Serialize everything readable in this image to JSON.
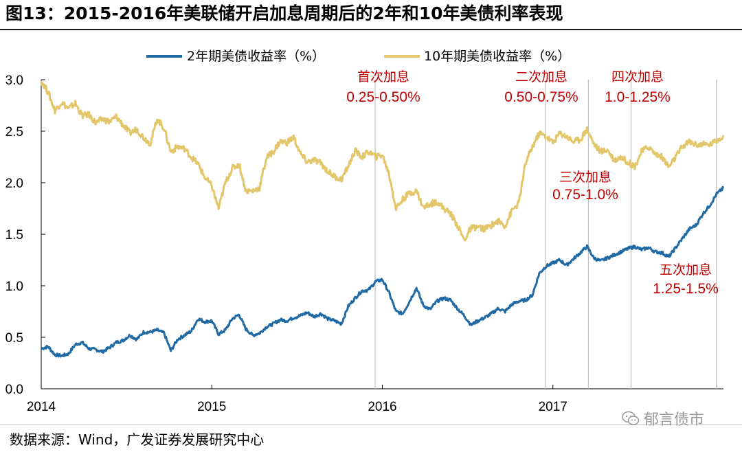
{
  "title": "图13：2015-2016年美联储开启加息周期后的2年和10年美债利率表现",
  "source": "数据来源：Wind，广发证券发展研究中心",
  "watermark": "郁言债市",
  "watermark_icon": "wechat-icon",
  "colors": {
    "series_2y": "#1f6aa5",
    "series_10y": "#e3c56a",
    "annotation": "#c00000",
    "marker_line": "#bfbfbf"
  },
  "chart_data": {
    "type": "line",
    "title": "2015-2016年美联储开启加息周期后的2年和10年美债利率表现",
    "xlabel": "",
    "ylabel": "",
    "xlim": [
      2014.0,
      2018.0
    ],
    "ylim": [
      0.0,
      3.0
    ],
    "x_ticks": [
      {
        "value": 2014.0,
        "label": "2014"
      },
      {
        "value": 2015.0,
        "label": "2015"
      },
      {
        "value": 2016.0,
        "label": "2016"
      },
      {
        "value": 2017.0,
        "label": "2017"
      }
    ],
    "y_ticks": [
      {
        "value": 0.0,
        "label": "0.0"
      },
      {
        "value": 0.5,
        "label": "0.5"
      },
      {
        "value": 1.0,
        "label": "1.0"
      },
      {
        "value": 1.5,
        "label": "1.5"
      },
      {
        "value": 2.0,
        "label": "2.0"
      },
      {
        "value": 2.5,
        "label": "2.5"
      },
      {
        "value": 3.0,
        "label": "3.0"
      }
    ],
    "legend": {
      "position": "top-center",
      "entries": [
        "2年期美债收益率（%）",
        "10年期美债收益率（%）"
      ]
    },
    "series": [
      {
        "name": "2年期美债收益率（%）",
        "x": [
          2014.0,
          2014.04,
          2014.08,
          2014.12,
          2014.16,
          2014.2,
          2014.24,
          2014.28,
          2014.32,
          2014.36,
          2014.4,
          2014.44,
          2014.48,
          2014.52,
          2014.56,
          2014.6,
          2014.64,
          2014.68,
          2014.72,
          2014.76,
          2014.8,
          2014.84,
          2014.88,
          2014.92,
          2014.96,
          2015.0,
          2015.04,
          2015.08,
          2015.12,
          2015.16,
          2015.2,
          2015.24,
          2015.28,
          2015.32,
          2015.36,
          2015.4,
          2015.44,
          2015.48,
          2015.52,
          2015.56,
          2015.6,
          2015.64,
          2015.68,
          2015.72,
          2015.76,
          2015.8,
          2015.84,
          2015.88,
          2015.92,
          2015.96,
          2016.0,
          2016.04,
          2016.08,
          2016.12,
          2016.16,
          2016.2,
          2016.24,
          2016.28,
          2016.32,
          2016.36,
          2016.4,
          2016.44,
          2016.48,
          2016.52,
          2016.56,
          2016.6,
          2016.64,
          2016.68,
          2016.72,
          2016.76,
          2016.8,
          2016.84,
          2016.88,
          2016.92,
          2016.96,
          2017.0,
          2017.04,
          2017.08,
          2017.12,
          2017.16,
          2017.2,
          2017.24,
          2017.28,
          2017.32,
          2017.36,
          2017.4,
          2017.44,
          2017.48,
          2017.52,
          2017.56,
          2017.6,
          2017.64,
          2017.68,
          2017.72,
          2017.76,
          2017.8,
          2017.84,
          2017.88,
          2017.92,
          2017.96,
          2018.0
        ],
        "values": [
          0.39,
          0.41,
          0.33,
          0.32,
          0.34,
          0.43,
          0.45,
          0.39,
          0.38,
          0.36,
          0.4,
          0.45,
          0.47,
          0.52,
          0.48,
          0.55,
          0.55,
          0.57,
          0.54,
          0.37,
          0.48,
          0.52,
          0.56,
          0.68,
          0.65,
          0.66,
          0.53,
          0.57,
          0.68,
          0.72,
          0.58,
          0.52,
          0.54,
          0.6,
          0.63,
          0.67,
          0.66,
          0.69,
          0.71,
          0.74,
          0.7,
          0.73,
          0.68,
          0.66,
          0.63,
          0.8,
          0.88,
          0.95,
          0.96,
          1.04,
          1.06,
          0.93,
          0.75,
          0.73,
          0.85,
          0.98,
          0.81,
          0.77,
          0.85,
          0.88,
          0.86,
          0.78,
          0.71,
          0.62,
          0.66,
          0.69,
          0.73,
          0.78,
          0.75,
          0.82,
          0.85,
          0.86,
          0.91,
          1.12,
          1.19,
          1.22,
          1.25,
          1.2,
          1.26,
          1.32,
          1.38,
          1.27,
          1.24,
          1.27,
          1.3,
          1.33,
          1.36,
          1.38,
          1.35,
          1.37,
          1.33,
          1.32,
          1.28,
          1.37,
          1.46,
          1.55,
          1.59,
          1.7,
          1.78,
          1.89,
          1.95
        ]
      },
      {
        "name": "10年期美债收益率（%）",
        "x": [
          2014.0,
          2014.04,
          2014.08,
          2014.12,
          2014.16,
          2014.2,
          2014.24,
          2014.28,
          2014.32,
          2014.36,
          2014.4,
          2014.44,
          2014.48,
          2014.52,
          2014.56,
          2014.6,
          2014.64,
          2014.68,
          2014.72,
          2014.76,
          2014.8,
          2014.84,
          2014.88,
          2014.92,
          2014.96,
          2015.0,
          2015.04,
          2015.08,
          2015.12,
          2015.16,
          2015.2,
          2015.24,
          2015.28,
          2015.32,
          2015.36,
          2015.4,
          2015.44,
          2015.48,
          2015.52,
          2015.56,
          2015.6,
          2015.64,
          2015.68,
          2015.72,
          2015.76,
          2015.8,
          2015.84,
          2015.88,
          2015.92,
          2015.96,
          2016.0,
          2016.04,
          2016.08,
          2016.12,
          2016.16,
          2016.2,
          2016.24,
          2016.28,
          2016.32,
          2016.36,
          2016.4,
          2016.44,
          2016.48,
          2016.52,
          2016.56,
          2016.6,
          2016.64,
          2016.68,
          2016.72,
          2016.76,
          2016.8,
          2016.84,
          2016.88,
          2016.92,
          2016.96,
          2017.0,
          2017.04,
          2017.08,
          2017.12,
          2017.16,
          2017.2,
          2017.24,
          2017.28,
          2017.32,
          2017.36,
          2017.4,
          2017.44,
          2017.48,
          2017.52,
          2017.56,
          2017.6,
          2017.64,
          2017.68,
          2017.72,
          2017.76,
          2017.8,
          2017.84,
          2017.88,
          2017.92,
          2017.96,
          2018.0
        ],
        "values": [
          2.99,
          2.88,
          2.7,
          2.78,
          2.72,
          2.77,
          2.65,
          2.66,
          2.58,
          2.62,
          2.59,
          2.64,
          2.56,
          2.48,
          2.52,
          2.44,
          2.38,
          2.62,
          2.53,
          2.3,
          2.35,
          2.33,
          2.25,
          2.18,
          2.05,
          1.97,
          1.75,
          2.0,
          2.14,
          2.18,
          1.92,
          1.92,
          1.95,
          2.24,
          2.3,
          2.4,
          2.39,
          2.44,
          2.28,
          2.2,
          2.22,
          2.19,
          2.11,
          2.06,
          2.03,
          2.16,
          2.31,
          2.25,
          2.3,
          2.25,
          2.27,
          2.08,
          1.75,
          1.84,
          1.9,
          1.92,
          1.76,
          1.79,
          1.82,
          1.75,
          1.7,
          1.59,
          1.44,
          1.56,
          1.57,
          1.55,
          1.59,
          1.63,
          1.58,
          1.73,
          1.8,
          2.19,
          2.35,
          2.48,
          2.45,
          2.39,
          2.48,
          2.45,
          2.4,
          2.42,
          2.52,
          2.38,
          2.3,
          2.32,
          2.22,
          2.25,
          2.2,
          2.16,
          2.3,
          2.35,
          2.28,
          2.25,
          2.15,
          2.25,
          2.35,
          2.4,
          2.37,
          2.37,
          2.37,
          2.41,
          2.46
        ]
      }
    ],
    "rate_hike_markers": [
      2015.958,
      2016.958,
      2017.208,
      2017.458,
      2017.958
    ],
    "annotations": [
      {
        "name": "first-hike",
        "label": "首次加息",
        "range": "0.25-0.50%"
      },
      {
        "name": "second-hike",
        "label": "二次加息",
        "range": "0.50-0.75%"
      },
      {
        "name": "third-hike",
        "label": "三次加息",
        "range": "0.75-1.0%"
      },
      {
        "name": "fourth-hike",
        "label": "四次加息",
        "range": "1.0-1.25%"
      },
      {
        "name": "fifth-hike",
        "label": "五次加息",
        "range": "1.25-1.5%"
      }
    ]
  }
}
